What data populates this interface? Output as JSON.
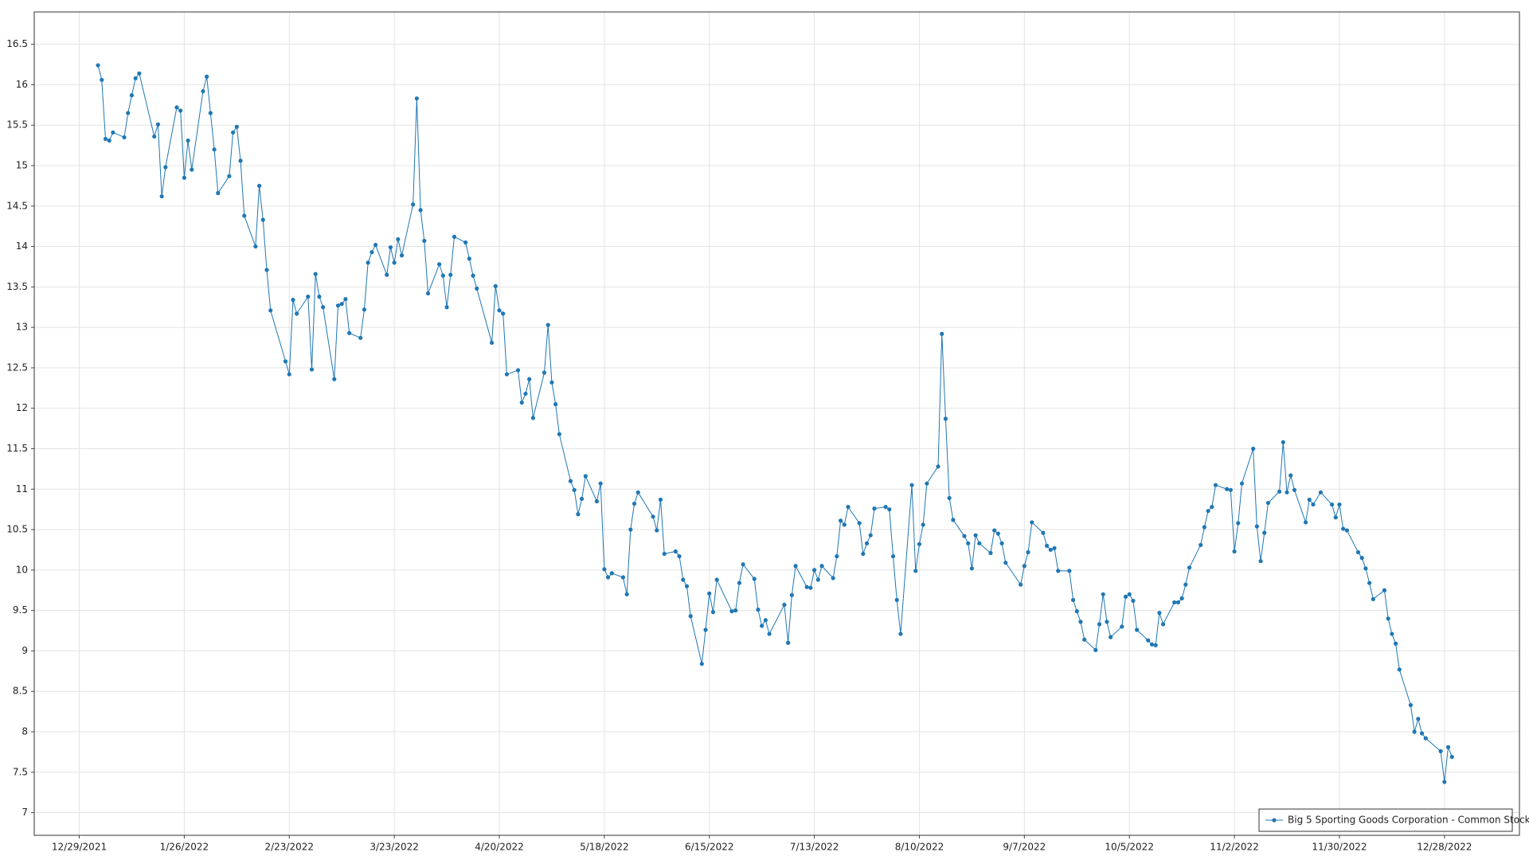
{
  "chart_data": {
    "type": "line",
    "x": [
      "2022-01-03",
      "2022-01-04",
      "2022-01-05",
      "2022-01-06",
      "2022-01-07",
      "2022-01-10",
      "2022-01-11",
      "2022-01-12",
      "2022-01-13",
      "2022-01-14",
      "2022-01-18",
      "2022-01-19",
      "2022-01-20",
      "2022-01-21",
      "2022-01-24",
      "2022-01-25",
      "2022-01-26",
      "2022-01-27",
      "2022-01-28",
      "2022-01-31",
      "2022-02-01",
      "2022-02-02",
      "2022-02-03",
      "2022-02-04",
      "2022-02-07",
      "2022-02-08",
      "2022-02-09",
      "2022-02-10",
      "2022-02-11",
      "2022-02-14",
      "2022-02-15",
      "2022-02-16",
      "2022-02-17",
      "2022-02-18",
      "2022-02-22",
      "2022-02-23",
      "2022-02-24",
      "2022-02-25",
      "2022-02-28",
      "2022-03-01",
      "2022-03-02",
      "2022-03-03",
      "2022-03-04",
      "2022-03-07",
      "2022-03-08",
      "2022-03-09",
      "2022-03-10",
      "2022-03-11",
      "2022-03-14",
      "2022-03-15",
      "2022-03-16",
      "2022-03-17",
      "2022-03-18",
      "2022-03-21",
      "2022-03-22",
      "2022-03-23",
      "2022-03-24",
      "2022-03-25",
      "2022-03-28",
      "2022-03-29",
      "2022-03-30",
      "2022-03-31",
      "2022-04-01",
      "2022-04-04",
      "2022-04-05",
      "2022-04-06",
      "2022-04-07",
      "2022-04-08",
      "2022-04-11",
      "2022-04-12",
      "2022-04-13",
      "2022-04-14",
      "2022-04-18",
      "2022-04-19",
      "2022-04-20",
      "2022-04-21",
      "2022-04-22",
      "2022-04-25",
      "2022-04-26",
      "2022-04-27",
      "2022-04-28",
      "2022-04-29",
      "2022-05-02",
      "2022-05-03",
      "2022-05-04",
      "2022-05-05",
      "2022-05-06",
      "2022-05-09",
      "2022-05-10",
      "2022-05-11",
      "2022-05-12",
      "2022-05-13",
      "2022-05-16",
      "2022-05-17",
      "2022-05-18",
      "2022-05-19",
      "2022-05-20",
      "2022-05-23",
      "2022-05-24",
      "2022-05-25",
      "2022-05-26",
      "2022-05-27",
      "2022-05-31",
      "2022-06-01",
      "2022-06-02",
      "2022-06-03",
      "2022-06-06",
      "2022-06-07",
      "2022-06-08",
      "2022-06-09",
      "2022-06-10",
      "2022-06-13",
      "2022-06-14",
      "2022-06-15",
      "2022-06-16",
      "2022-06-17",
      "2022-06-21",
      "2022-06-22",
      "2022-06-23",
      "2022-06-24",
      "2022-06-27",
      "2022-06-28",
      "2022-06-29",
      "2022-06-30",
      "2022-07-01",
      "2022-07-05",
      "2022-07-06",
      "2022-07-07",
      "2022-07-08",
      "2022-07-11",
      "2022-07-12",
      "2022-07-13",
      "2022-07-14",
      "2022-07-15",
      "2022-07-18",
      "2022-07-19",
      "2022-07-20",
      "2022-07-21",
      "2022-07-22",
      "2022-07-25",
      "2022-07-26",
      "2022-07-27",
      "2022-07-28",
      "2022-07-29",
      "2022-08-01",
      "2022-08-02",
      "2022-08-03",
      "2022-08-04",
      "2022-08-05",
      "2022-08-08",
      "2022-08-09",
      "2022-08-10",
      "2022-08-11",
      "2022-08-12",
      "2022-08-15",
      "2022-08-16",
      "2022-08-17",
      "2022-08-18",
      "2022-08-19",
      "2022-08-22",
      "2022-08-23",
      "2022-08-24",
      "2022-08-25",
      "2022-08-26",
      "2022-08-29",
      "2022-08-30",
      "2022-08-31",
      "2022-09-01",
      "2022-09-02",
      "2022-09-06",
      "2022-09-07",
      "2022-09-08",
      "2022-09-09",
      "2022-09-12",
      "2022-09-13",
      "2022-09-14",
      "2022-09-15",
      "2022-09-16",
      "2022-09-19",
      "2022-09-20",
      "2022-09-21",
      "2022-09-22",
      "2022-09-23",
      "2022-09-26",
      "2022-09-27",
      "2022-09-28",
      "2022-09-29",
      "2022-09-30",
      "2022-10-03",
      "2022-10-04",
      "2022-10-05",
      "2022-10-06",
      "2022-10-07",
      "2022-10-10",
      "2022-10-11",
      "2022-10-12",
      "2022-10-13",
      "2022-10-14",
      "2022-10-17",
      "2022-10-18",
      "2022-10-19",
      "2022-10-20",
      "2022-10-21",
      "2022-10-24",
      "2022-10-25",
      "2022-10-26",
      "2022-10-27",
      "2022-10-28",
      "2022-10-31",
      "2022-11-01",
      "2022-11-02",
      "2022-11-03",
      "2022-11-04",
      "2022-11-07",
      "2022-11-08",
      "2022-11-09",
      "2022-11-10",
      "2022-11-11",
      "2022-11-14",
      "2022-11-15",
      "2022-11-16",
      "2022-11-17",
      "2022-11-18",
      "2022-11-21",
      "2022-11-22",
      "2022-11-23",
      "2022-11-25",
      "2022-11-28",
      "2022-11-29",
      "2022-11-30",
      "2022-12-01",
      "2022-12-02",
      "2022-12-05",
      "2022-12-06",
      "2022-12-07",
      "2022-12-08",
      "2022-12-09",
      "2022-12-12",
      "2022-12-13",
      "2022-12-14",
      "2022-12-15",
      "2022-12-16",
      "2022-12-19",
      "2022-12-20",
      "2022-12-21",
      "2022-12-22",
      "2022-12-23",
      "2022-12-27",
      "2022-12-28",
      "2022-12-29",
      "2022-12-30"
    ],
    "series": [
      {
        "name": "Big 5 Sporting Goods Corporation - Common Stock",
        "color": "#1f77b4",
        "values": [
          16.24,
          16.06,
          15.33,
          15.31,
          15.41,
          15.35,
          15.65,
          15.87,
          16.08,
          16.14,
          15.36,
          15.51,
          14.62,
          14.98,
          15.72,
          15.68,
          14.85,
          15.31,
          14.95,
          15.92,
          16.1,
          15.65,
          15.2,
          14.66,
          14.87,
          15.41,
          15.48,
          15.06,
          14.38,
          14.0,
          14.75,
          14.33,
          13.71,
          13.21,
          12.58,
          12.42,
          13.34,
          13.17,
          13.38,
          12.48,
          13.66,
          13.38,
          13.25,
          12.36,
          13.27,
          13.29,
          13.35,
          12.93,
          12.87,
          13.22,
          13.8,
          13.93,
          14.02,
          13.65,
          13.99,
          13.8,
          14.09,
          13.89,
          14.52,
          15.83,
          14.45,
          14.07,
          13.42,
          13.78,
          13.64,
          13.25,
          13.65,
          14.12,
          14.05,
          13.85,
          13.64,
          13.48,
          12.81,
          13.51,
          13.21,
          13.17,
          12.42,
          12.47,
          12.07,
          12.18,
          12.36,
          11.88,
          12.44,
          13.03,
          12.32,
          12.05,
          11.68,
          11.1,
          10.99,
          10.69,
          10.88,
          11.16,
          10.85,
          11.07,
          10.01,
          9.91,
          9.96,
          9.91,
          9.7,
          10.5,
          10.82,
          10.96,
          10.66,
          10.49,
          10.87,
          10.2,
          10.23,
          10.17,
          9.88,
          9.8,
          9.43,
          8.84,
          9.26,
          9.71,
          9.48,
          9.88,
          9.49,
          9.5,
          9.84,
          10.07,
          9.89,
          9.51,
          9.31,
          9.38,
          9.21,
          9.57,
          9.1,
          9.69,
          10.05,
          9.79,
          9.78,
          10.0,
          9.88,
          10.05,
          9.9,
          10.17,
          10.61,
          10.56,
          10.78,
          10.58,
          10.2,
          10.33,
          10.43,
          10.76,
          10.78,
          10.75,
          10.17,
          9.63,
          9.21,
          11.05,
          9.99,
          10.32,
          10.56,
          11.07,
          11.28,
          12.92,
          11.87,
          10.89,
          10.62,
          10.42,
          10.33,
          10.02,
          10.43,
          10.33,
          10.21,
          10.49,
          10.45,
          10.33,
          10.09,
          9.82,
          10.05,
          10.22,
          10.59,
          10.46,
          10.3,
          10.25,
          10.27,
          9.99,
          9.99,
          9.63,
          9.49,
          9.36,
          9.14,
          9.01,
          9.33,
          9.7,
          9.36,
          9.17,
          9.3,
          9.67,
          9.7,
          9.62,
          9.26,
          9.13,
          9.08,
          9.07,
          9.47,
          9.33,
          9.6,
          9.6,
          9.65,
          9.82,
          10.03,
          10.31,
          10.53,
          10.73,
          10.78,
          11.05,
          11.0,
          10.99,
          10.23,
          10.58,
          11.07,
          11.5,
          10.54,
          10.11,
          10.46,
          10.83,
          10.97,
          11.58,
          10.96,
          11.17,
          10.99,
          10.59,
          10.87,
          10.81,
          10.96,
          10.81,
          10.65,
          10.81,
          10.51,
          10.49,
          10.22,
          10.15,
          10.02,
          9.84,
          9.64,
          9.75,
          9.4,
          9.21,
          9.09,
          8.77,
          8.33,
          8.0,
          8.16,
          7.98,
          7.92,
          7.76,
          7.38,
          7.81,
          7.69
        ]
      }
    ],
    "xlim": [
      "2021-12-17",
      "2023-01-17"
    ],
    "xticks": [
      {
        "value": "2021-12-29",
        "label": "12/29/2021"
      },
      {
        "value": "2022-01-26",
        "label": "1/26/2022"
      },
      {
        "value": "2022-02-23",
        "label": "2/23/2022"
      },
      {
        "value": "2022-03-23",
        "label": "3/23/2022"
      },
      {
        "value": "2022-04-20",
        "label": "4/20/2022"
      },
      {
        "value": "2022-05-18",
        "label": "5/18/2022"
      },
      {
        "value": "2022-06-15",
        "label": "6/15/2022"
      },
      {
        "value": "2022-07-13",
        "label": "7/13/2022"
      },
      {
        "value": "2022-08-10",
        "label": "8/10/2022"
      },
      {
        "value": "2022-09-07",
        "label": "9/7/2022"
      },
      {
        "value": "2022-10-05",
        "label": "10/5/2022"
      },
      {
        "value": "2022-11-02",
        "label": "11/2/2022"
      },
      {
        "value": "2022-11-30",
        "label": "11/30/2022"
      },
      {
        "value": "2022-12-28",
        "label": "12/28/2022"
      }
    ],
    "ylim": [
      6.72,
      16.9
    ],
    "yticks": [
      7,
      7.5,
      8,
      8.5,
      9,
      9.5,
      10,
      10.5,
      11,
      11.5,
      12,
      12.5,
      13,
      13.5,
      14,
      14.5,
      15,
      15.5,
      16,
      16.5
    ],
    "grid": true,
    "legend": "lower right"
  }
}
